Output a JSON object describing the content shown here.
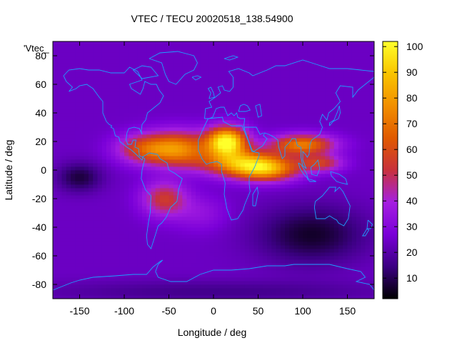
{
  "chart_data": {
    "type": "heatmap",
    "title": "VTEC / TECU 20020518_138.54900",
    "xlabel": "Longitude / deg",
    "ylabel": "Latitude / deg",
    "xlim": [
      -180,
      180
    ],
    "ylim": [
      -90,
      90
    ],
    "x_ticks": [
      -150,
      -100,
      -50,
      0,
      50,
      100,
      150
    ],
    "y_ticks": [
      -80,
      -60,
      -40,
      -20,
      0,
      20,
      40,
      60,
      80
    ],
    "legend_key": "'Vtec_",
    "colorbar": {
      "range": [
        2,
        102
      ],
      "ticks": [
        10,
        20,
        30,
        40,
        50,
        60,
        70,
        80,
        90,
        100
      ],
      "palette": [
        "#000000",
        "#3b0082",
        "#7a00d8",
        "#a51fe0",
        "#c8323c",
        "#e05a00",
        "#f28f00",
        "#f9c400",
        "#ffff2a"
      ]
    },
    "grid": false,
    "field_description_values": {
      "max_vtec_region": {
        "lon": [
          0,
          30
        ],
        "lat": [
          15,
          25
        ],
        "vtec": 95
      },
      "equatorial_anomaly_lon_range": [
        -100,
        140
      ],
      "low_values_region": {
        "lon": [
          50,
          180
        ],
        "lat": [
          -50,
          -20
        ],
        "vtec": 8
      }
    },
    "vtec_sources": [
      {
        "lon": 15,
        "lat": 20,
        "amp": 78,
        "slon": 22,
        "slat": 10
      },
      {
        "lon": 35,
        "lat": 5,
        "amp": 55,
        "slon": 45,
        "slat": 9
      },
      {
        "lon": 100,
        "lat": 18,
        "amp": 48,
        "slon": 35,
        "slat": 7
      },
      {
        "lon": -40,
        "lat": 15,
        "amp": 50,
        "slon": 35,
        "slat": 12
      },
      {
        "lon": -80,
        "lat": 15,
        "amp": 30,
        "slon": 30,
        "slat": 10
      },
      {
        "lon": -55,
        "lat": -20,
        "amp": 30,
        "slon": 25,
        "slat": 12
      },
      {
        "lon": 60,
        "lat": 0,
        "amp": 40,
        "slon": 35,
        "slat": 8
      },
      {
        "lon": 120,
        "lat": 5,
        "amp": 30,
        "slon": 25,
        "slat": 6
      },
      {
        "lon": -15,
        "lat": -30,
        "amp": 10,
        "slon": 30,
        "slat": 12
      }
    ],
    "vtec_background": 24,
    "vtec_dips": [
      {
        "lon": -150,
        "lat": -5,
        "amp": 16,
        "slon": 25,
        "slat": 10
      },
      {
        "lon": 110,
        "lat": -45,
        "amp": 18,
        "slon": 60,
        "slat": 20
      },
      {
        "lon": 0,
        "lat": -85,
        "amp": 8,
        "slon": 200,
        "slat": 8
      }
    ]
  }
}
